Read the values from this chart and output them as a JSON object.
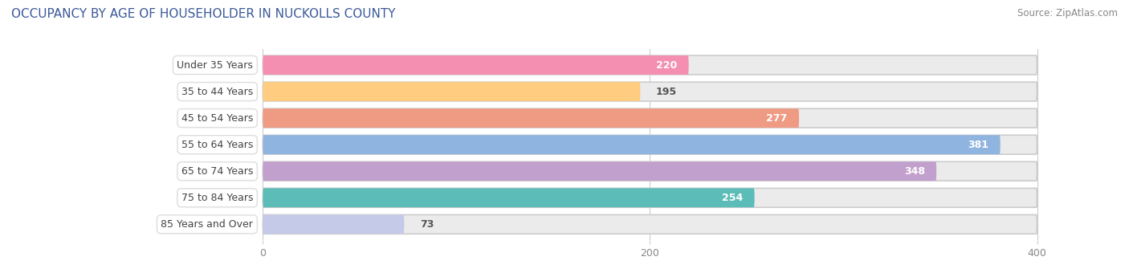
{
  "title": "OCCUPANCY BY AGE OF HOUSEHOLDER IN NUCKOLLS COUNTY",
  "source": "Source: ZipAtlas.com",
  "categories": [
    "Under 35 Years",
    "35 to 44 Years",
    "45 to 54 Years",
    "55 to 64 Years",
    "65 to 74 Years",
    "75 to 84 Years",
    "85 Years and Over"
  ],
  "values": [
    220,
    195,
    277,
    381,
    348,
    254,
    73
  ],
  "bar_colors": [
    "#F48FB1",
    "#FFCC80",
    "#EF9A82",
    "#90B4E0",
    "#C2A0CD",
    "#5BBCB8",
    "#C5CAE9"
  ],
  "bg_bar_color": "#EBEBEB",
  "xlim_left": -130,
  "xlim_right": 430,
  "xticks": [
    0,
    200,
    400
  ],
  "title_fontsize": 11,
  "source_fontsize": 8.5,
  "label_fontsize": 9,
  "value_fontsize": 9,
  "bg_color": "#FFFFFF",
  "bar_height": 0.72,
  "bar_max": 400,
  "value_inside_threshold": 200
}
